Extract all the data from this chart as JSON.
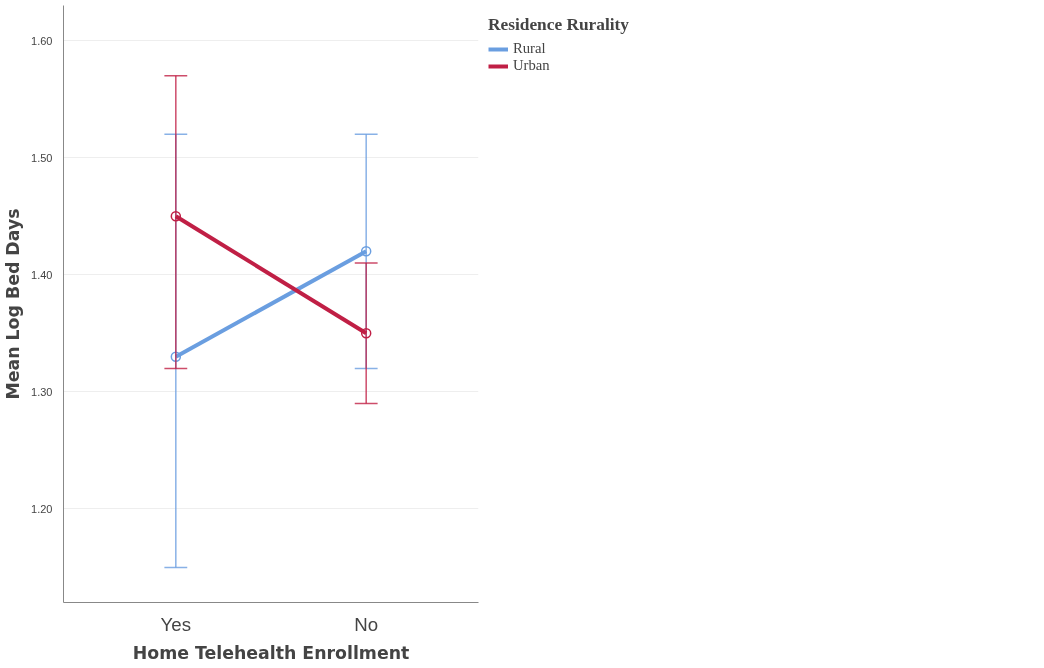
{
  "chart_data": {
    "type": "line",
    "xlabel": "Home Telehealth Enrollment",
    "ylabel": "Mean Log Bed Days",
    "legend_title": "Residence Rurality",
    "categories": [
      "Yes",
      "No"
    ],
    "series": [
      {
        "name": "Rural",
        "color": "#6a9ee0",
        "values": [
          1.33,
          1.42
        ],
        "errors": [
          [
            1.15,
            1.52
          ],
          [
            1.32,
            1.52
          ]
        ]
      },
      {
        "name": "Urban",
        "color": "#c01f45",
        "values": [
          1.45,
          1.35
        ],
        "errors": [
          [
            1.32,
            1.57
          ],
          [
            1.29,
            1.41
          ]
        ]
      }
    ],
    "ylim": [
      1.12,
      1.63
    ],
    "yticks": [
      {
        "value": 1.2,
        "label": "1.20"
      },
      {
        "value": 1.3,
        "label": "1.30"
      },
      {
        "value": 1.4,
        "label": "1.40"
      },
      {
        "value": 1.5,
        "label": "1.50"
      },
      {
        "value": 1.6,
        "label": "1.60"
      }
    ],
    "grid": "y",
    "legend": "top right",
    "marker": "circle",
    "line_style": "solid"
  }
}
